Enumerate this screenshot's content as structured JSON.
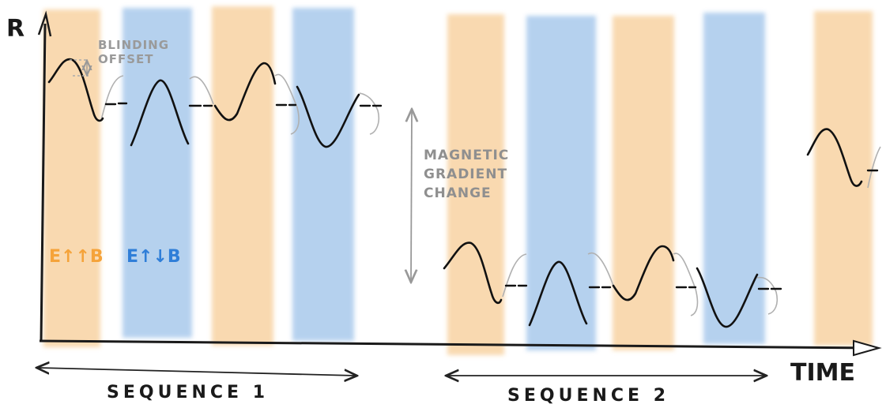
{
  "diagram": {
    "axis_y_label": "R",
    "axis_x_label": "TIME",
    "blinding_line1": "BLINDING",
    "blinding_line2": "OFFSET",
    "gradient_line1": "MAGNETIC",
    "gradient_line2": "GRADIENT",
    "gradient_line3": "CHANGE",
    "legend_parallel": "E↑↑B",
    "legend_antiparallel": "E↑↓B",
    "sequence1_label": "SEQUENCE 1",
    "sequence2_label": "SEQUENCE 2",
    "colors": {
      "parallel": "#f8d3a3",
      "antiparallel": "#a9c9ec",
      "parallel_text": "#f5a33a",
      "antiparallel_text": "#2f7ed8",
      "signal": "#111111",
      "ghost": "#b0b0b0"
    }
  }
}
